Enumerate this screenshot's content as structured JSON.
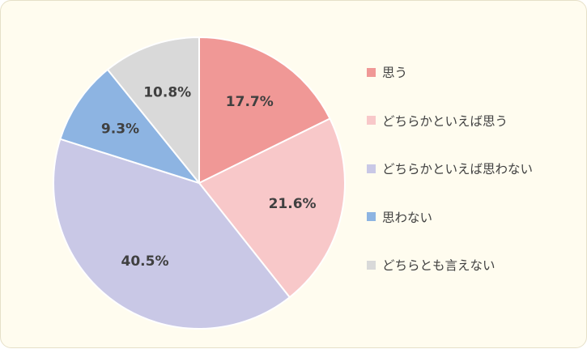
{
  "chart_data": {
    "type": "pie",
    "title": "",
    "start_angle_deg": 0,
    "direction": "clockwise",
    "legend_position": "right",
    "slices": [
      {
        "label": "思う",
        "value": 17.7,
        "display": "17.7%",
        "color": "#f09896"
      },
      {
        "label": "どちらかといえば思う",
        "value": 21.6,
        "display": "21.6%",
        "color": "#f8c8c9"
      },
      {
        "label": "どちらかといえば思わない",
        "value": 40.5,
        "display": "40.5%",
        "color": "#c9c8e6"
      },
      {
        "label": "思わない",
        "value": 9.3,
        "display": "9.3%",
        "color": "#8db4e2"
      },
      {
        "label": "どちらとも言えない",
        "value": 10.8,
        "display": "10.8%",
        "color": "#d9d9d9"
      }
    ]
  }
}
